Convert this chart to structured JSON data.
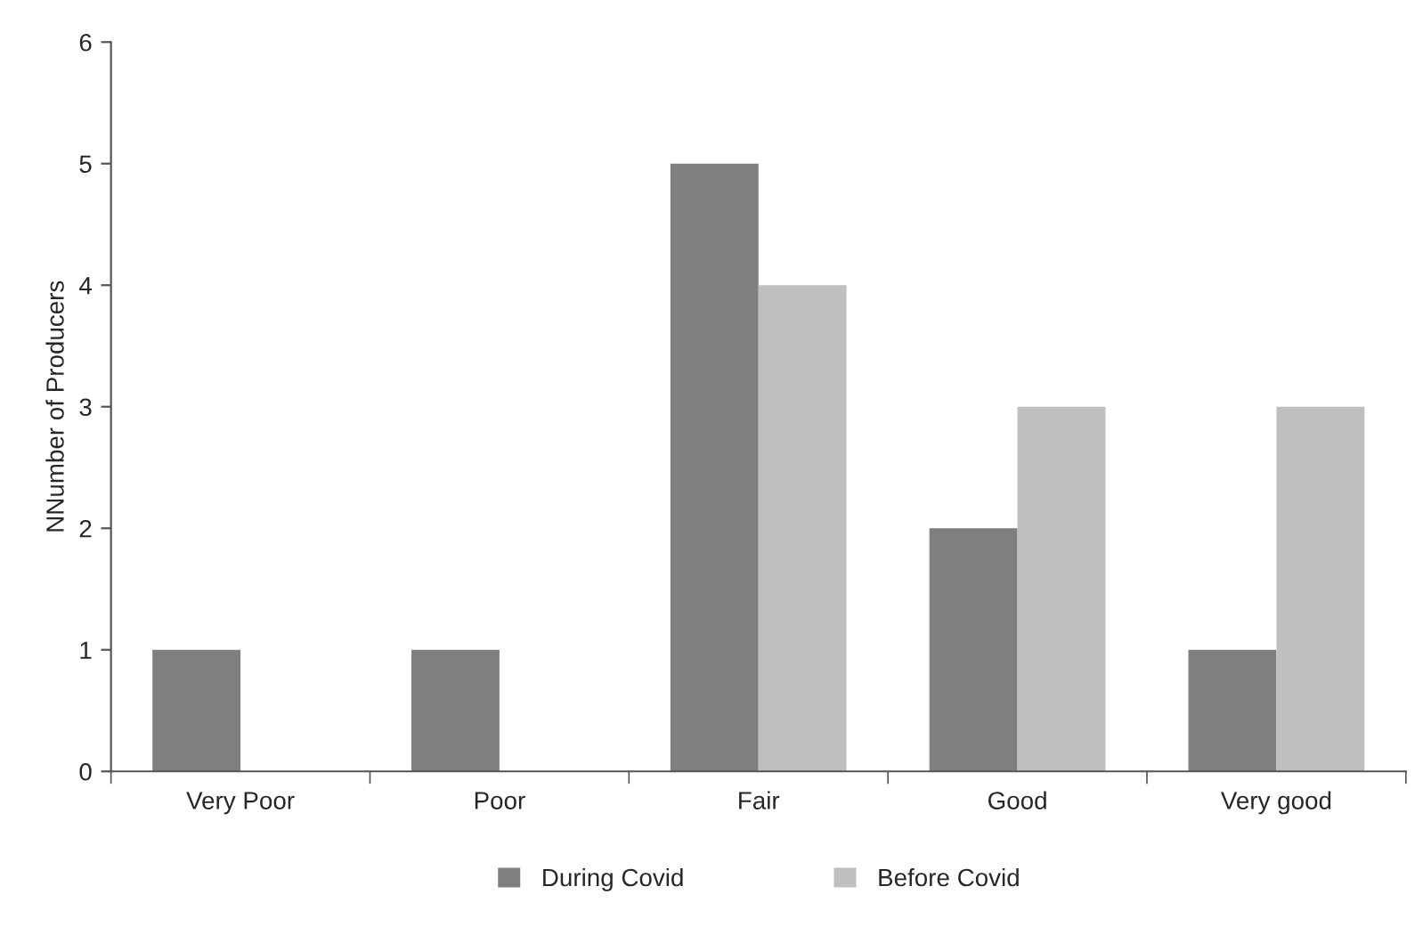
{
  "chart_data": {
    "type": "bar",
    "ylabel": "NNumber of Producers",
    "categories": [
      "Very Poor",
      "Poor",
      "Fair",
      "Good",
      "Very good"
    ],
    "series": [
      {
        "name": "During Covid",
        "color": "#7f7f7f",
        "values": [
          1,
          1,
          5,
          2,
          1
        ]
      },
      {
        "name": "Before Covid",
        "color": "#bfbfbf",
        "values": [
          0,
          0,
          4,
          3,
          3
        ]
      }
    ],
    "ylim": [
      0,
      6
    ],
    "yticks": [
      0,
      1,
      2,
      3,
      4,
      5,
      6
    ],
    "grid": false,
    "legend": "bottom"
  }
}
